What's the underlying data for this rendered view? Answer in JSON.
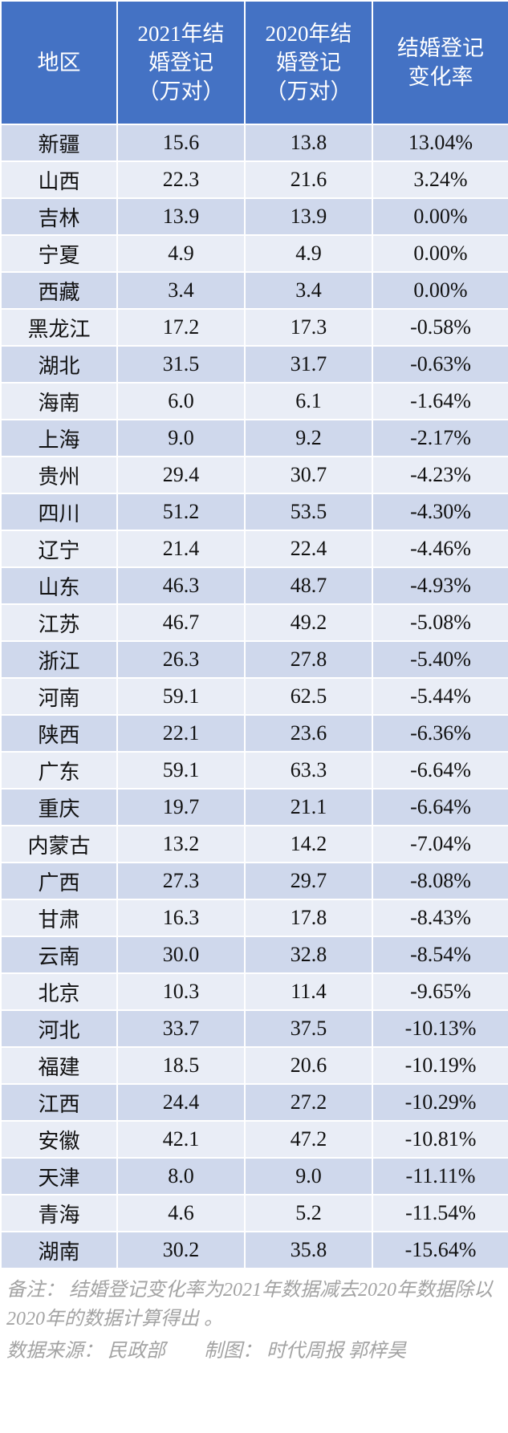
{
  "table": {
    "header": [
      [
        "地区"
      ],
      [
        "2021年结",
        "婚登记",
        "（万对）"
      ],
      [
        "2020年结",
        "婚登记",
        "（万对）"
      ],
      [
        "结婚登记",
        "变化率"
      ]
    ],
    "rows": [
      [
        "新疆",
        "15.6",
        "13.8",
        "13.04%"
      ],
      [
        "山西",
        "22.3",
        "21.6",
        "3.24%"
      ],
      [
        "吉林",
        "13.9",
        "13.9",
        "0.00%"
      ],
      [
        "宁夏",
        "4.9",
        "4.9",
        "0.00%"
      ],
      [
        "西藏",
        "3.4",
        "3.4",
        "0.00%"
      ],
      [
        "黑龙江",
        "17.2",
        "17.3",
        "-0.58%"
      ],
      [
        "湖北",
        "31.5",
        "31.7",
        "-0.63%"
      ],
      [
        "海南",
        "6.0",
        "6.1",
        "-1.64%"
      ],
      [
        "上海",
        "9.0",
        "9.2",
        "-2.17%"
      ],
      [
        "贵州",
        "29.4",
        "30.7",
        "-4.23%"
      ],
      [
        "四川",
        "51.2",
        "53.5",
        "-4.30%"
      ],
      [
        "辽宁",
        "21.4",
        "22.4",
        "-4.46%"
      ],
      [
        "山东",
        "46.3",
        "48.7",
        "-4.93%"
      ],
      [
        "江苏",
        "46.7",
        "49.2",
        "-5.08%"
      ],
      [
        "浙江",
        "26.3",
        "27.8",
        "-5.40%"
      ],
      [
        "河南",
        "59.1",
        "62.5",
        "-5.44%"
      ],
      [
        "陕西",
        "22.1",
        "23.6",
        "-6.36%"
      ],
      [
        "广东",
        "59.1",
        "63.3",
        "-6.64%"
      ],
      [
        "重庆",
        "19.7",
        "21.1",
        "-6.64%"
      ],
      [
        "内蒙古",
        "13.2",
        "14.2",
        "-7.04%"
      ],
      [
        "广西",
        "27.3",
        "29.7",
        "-8.08%"
      ],
      [
        "甘肃",
        "16.3",
        "17.8",
        "-8.43%"
      ],
      [
        "云南",
        "30.0",
        "32.8",
        "-8.54%"
      ],
      [
        "北京",
        "10.3",
        "11.4",
        "-9.65%"
      ],
      [
        "河北",
        "33.7",
        "37.5",
        "-10.13%"
      ],
      [
        "福建",
        "18.5",
        "20.6",
        "-10.19%"
      ],
      [
        "江西",
        "24.4",
        "27.2",
        "-10.29%"
      ],
      [
        "安徽",
        "42.1",
        "47.2",
        "-10.81%"
      ],
      [
        "天津",
        "8.0",
        "9.0",
        "-11.11%"
      ],
      [
        "青海",
        "4.6",
        "5.2",
        "-11.54%"
      ],
      [
        "湖南",
        "30.2",
        "35.8",
        "-15.64%"
      ]
    ]
  },
  "footer": {
    "note": "备注： 结婚登记变化率为2021年数据减去2020年数据除以2020年的数据计算得出 。",
    "source": "数据来源： 民政部　　制图： 时代周报 郭梓昊"
  }
}
